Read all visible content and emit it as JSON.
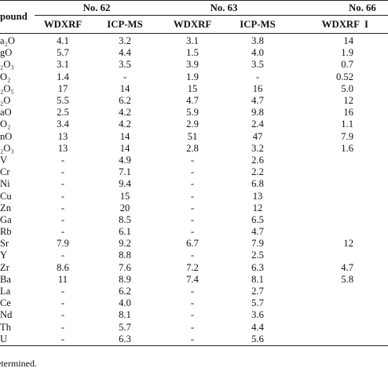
{
  "header": {
    "compound_label": "pound",
    "groups": [
      "No. 62",
      "No. 63",
      "No. 66"
    ],
    "methods": [
      "WDXRF",
      "ICP-MS",
      "WDXRF",
      "ICP-MS",
      "WDXRF",
      "I"
    ]
  },
  "rows": [
    {
      "name": "a₂O",
      "values": [
        "4.1",
        "3.2",
        "3.1",
        "3.8",
        "14",
        ""
      ]
    },
    {
      "name": "gO",
      "values": [
        "5.7",
        "4.4",
        "1.5",
        "4.0",
        "1.9",
        ""
      ]
    },
    {
      "name": "₂O₃",
      "values": [
        "3.1",
        "3.5",
        "3.9",
        "3.5",
        "0.7",
        ""
      ]
    },
    {
      "name": "O₂",
      "values": [
        "1.4",
        "-",
        "1.9",
        "-",
        "0.52",
        ""
      ]
    },
    {
      "name": "₂O₅",
      "values": [
        "17",
        "14",
        "15",
        "16",
        "5.0",
        ""
      ]
    },
    {
      "name": "₂O",
      "values": [
        "5.5",
        "6.2",
        "4.7",
        "4.7",
        "12",
        ""
      ]
    },
    {
      "name": "aO",
      "values": [
        "2.5",
        "4.2",
        "5.9",
        "9.8",
        "16",
        ""
      ]
    },
    {
      "name": "O₂",
      "values": [
        "3.4",
        "4.2",
        "2.9",
        "2.4",
        "1.1",
        ""
      ]
    },
    {
      "name": "nO",
      "values": [
        "13",
        "14",
        "51",
        "47",
        "7.9",
        ""
      ]
    },
    {
      "name": "₂O₃",
      "values": [
        "13",
        "14",
        "2.8",
        "3.2",
        "1.6",
        ""
      ]
    },
    {
      "name": "V",
      "values": [
        "-",
        "4.9",
        "-",
        "2.6",
        "",
        ""
      ]
    },
    {
      "name": "Cr",
      "values": [
        "-",
        "7.1",
        "-",
        "2.2",
        "",
        ""
      ]
    },
    {
      "name": "Ni",
      "values": [
        "-",
        "9.4",
        "-",
        "6.8",
        "",
        ""
      ]
    },
    {
      "name": "Cu",
      "values": [
        "-",
        "15",
        "-",
        "13",
        "",
        ""
      ]
    },
    {
      "name": "Zn",
      "values": [
        "-",
        "20",
        "-",
        "12",
        "",
        ""
      ]
    },
    {
      "name": "Ga",
      "values": [
        "-",
        "8.5",
        "-",
        "6.5",
        "",
        ""
      ]
    },
    {
      "name": "Rb",
      "values": [
        "-",
        "6.1",
        "-",
        "4.7",
        "",
        ""
      ]
    },
    {
      "name": "Sr",
      "values": [
        "7.9",
        "9.2",
        "6.7",
        "7.9",
        "12",
        ""
      ]
    },
    {
      "name": "Y",
      "values": [
        "-",
        "8.8",
        "-",
        "2.5",
        "",
        ""
      ]
    },
    {
      "name": "Zr",
      "values": [
        "8.6",
        "7.6",
        "7.2",
        "6.3",
        "4.7",
        ""
      ]
    },
    {
      "name": "Ba",
      "values": [
        "11",
        "8.9",
        "7.4",
        "8.1",
        "5.8",
        ""
      ]
    },
    {
      "name": "La",
      "values": [
        "-",
        "6.2",
        "-",
        "2.7",
        "",
        ""
      ]
    },
    {
      "name": "Ce",
      "values": [
        "-",
        "4.0",
        "-",
        "5.7",
        "",
        ""
      ]
    },
    {
      "name": "Nd",
      "values": [
        "-",
        "8.1",
        "-",
        "3.6",
        "",
        ""
      ]
    },
    {
      "name": "Th",
      "values": [
        "-",
        "5.7",
        "-",
        "4.4",
        "",
        ""
      ]
    },
    {
      "name": "U",
      "values": [
        "-",
        "6.3",
        "-",
        "5.6",
        "",
        ""
      ]
    }
  ],
  "footnote": "etermined."
}
